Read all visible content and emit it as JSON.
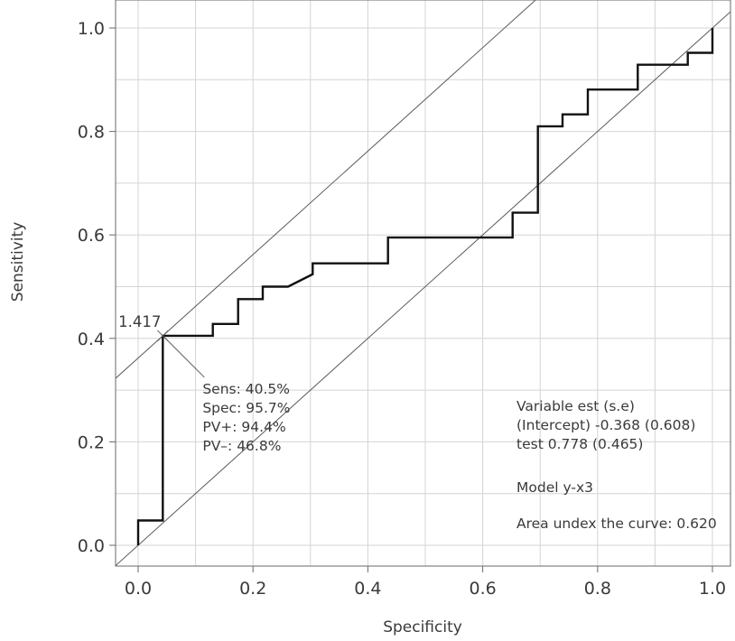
{
  "chart_data": {
    "type": "line",
    "title": "",
    "xlabel": "Specificity",
    "ylabel": "Sensitivity",
    "xlim": [
      -0.04,
      1.02
    ],
    "ylim": [
      -0.04,
      1.05
    ],
    "grid": true,
    "x_ticks": [
      {
        "value": 0.0,
        "label": "0.0"
      },
      {
        "value": 0.2,
        "label": "0.2"
      },
      {
        "value": 0.4,
        "label": "0.4"
      },
      {
        "value": 0.6,
        "label": "0.6"
      },
      {
        "value": 0.8,
        "label": "0.8"
      },
      {
        "value": 1.0,
        "label": "1.0"
      }
    ],
    "y_ticks": [
      {
        "value": 0.0,
        "label": "0.0"
      },
      {
        "value": 0.2,
        "label": "0.2"
      },
      {
        "value": 0.4,
        "label": "0.4"
      },
      {
        "value": 0.6,
        "label": "0.6"
      },
      {
        "value": 0.8,
        "label": "0.8"
      },
      {
        "value": 1.0,
        "label": "1.0"
      }
    ],
    "roc_points": [
      [
        0.0,
        0.0
      ],
      [
        0.0,
        0.048
      ],
      [
        0.043,
        0.048
      ],
      [
        0.043,
        0.405
      ],
      [
        0.13,
        0.405
      ],
      [
        0.13,
        0.428
      ],
      [
        0.174,
        0.428
      ],
      [
        0.174,
        0.476
      ],
      [
        0.217,
        0.476
      ],
      [
        0.217,
        0.5
      ],
      [
        0.261,
        0.5
      ],
      [
        0.304,
        0.524
      ],
      [
        0.304,
        0.545
      ],
      [
        0.435,
        0.545
      ],
      [
        0.435,
        0.595
      ],
      [
        0.652,
        0.595
      ],
      [
        0.652,
        0.643
      ],
      [
        0.696,
        0.643
      ],
      [
        0.696,
        0.81
      ],
      [
        0.739,
        0.81
      ],
      [
        0.739,
        0.833
      ],
      [
        0.783,
        0.833
      ],
      [
        0.783,
        0.881
      ],
      [
        0.87,
        0.881
      ],
      [
        0.87,
        0.929
      ],
      [
        0.957,
        0.929
      ],
      [
        0.957,
        0.952
      ],
      [
        1.0,
        0.952
      ],
      [
        1.0,
        1.0
      ]
    ],
    "reference_lines": [
      {
        "slope": 1,
        "intercept": 0.0
      },
      {
        "slope": 1,
        "intercept": 0.362
      }
    ],
    "cutoff": {
      "label": "1.417",
      "x": 0.043,
      "y": 0.405,
      "stats": [
        "Sens: 40.5%",
        "Spec: 95.7%",
        "PV+: 94.4%",
        "PV–: 46.8%"
      ]
    },
    "model_summary": {
      "lines": [
        "Variable est (s.e)",
        "(Intercept) -0.368 (0.608)",
        "test 0.778 (0.465)"
      ],
      "model": "Model y-x3",
      "auc": "Area undex the curve: 0.620"
    }
  }
}
